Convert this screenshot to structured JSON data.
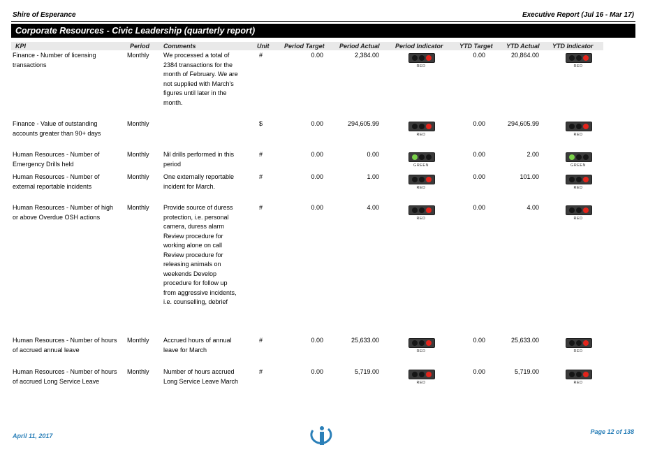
{
  "header": {
    "org": "Shire of Esperance",
    "report": "Executive Report (Jul 16 - Mar 17)",
    "banner": "Corporate Resources - Civic Leadership (quarterly report)"
  },
  "columns": {
    "kpi": "KPI",
    "period": "Period",
    "comments": "Comments",
    "unit": "Unit",
    "period_target": "Period Target",
    "period_actual": "Period Actual",
    "period_indicator": "Period Indicator",
    "ytd_target": "YTD Target",
    "ytd_actual": "YTD Actual",
    "ytd_indicator": "YTD Indicator"
  },
  "rows": [
    {
      "kpi": "Finance - Number of licensing transactions",
      "period": "Monthly",
      "comments": "We processed a total of 2384 transactions for the month of February. We are not supplied with March's figures until later in the month.",
      "unit": "#",
      "period_target": "0.00",
      "period_actual": "2,384.00",
      "period_indicator": "RED",
      "ytd_target": "0.00",
      "ytd_actual": "20,864.00",
      "ytd_indicator": "RED"
    },
    {
      "kpi": "Finance - Value of outstanding accounts greater than 90+ days",
      "period": "Monthly",
      "comments": "",
      "unit": "$",
      "period_target": "0.00",
      "period_actual": "294,605.99",
      "period_indicator": "RED",
      "ytd_target": "0.00",
      "ytd_actual": "294,605.99",
      "ytd_indicator": "RED"
    },
    {
      "kpi": "Human Resources - Number of Emergency Drills held",
      "period": "Monthly",
      "comments": "Nil drills performed in this period",
      "unit": "#",
      "period_target": "0.00",
      "period_actual": "0.00",
      "period_indicator": "GREEN",
      "ytd_target": "0.00",
      "ytd_actual": "2.00",
      "ytd_indicator": "GREEN"
    },
    {
      "kpi": "Human Resources - Number of external reportable incidents",
      "period": "Monthly",
      "comments": "One externally reportable incident for March.",
      "unit": "#",
      "period_target": "0.00",
      "period_actual": "1.00",
      "period_indicator": "RED",
      "ytd_target": "0.00",
      "ytd_actual": "101.00",
      "ytd_indicator": "RED"
    },
    {
      "kpi": "Human Resources - Number of high or above Overdue OSH actions",
      "period": "Monthly",
      "comments": "Provide source of duress protection, i.e. personal camera, duress alarm Review procedure for working alone on call Review procedure for releasing animals on weekends Develop procedure for follow up from aggressive incidents, i.e. counselling, debrief",
      "unit": "#",
      "period_target": "0.00",
      "period_actual": "4.00",
      "period_indicator": "RED",
      "ytd_target": "0.00",
      "ytd_actual": "4.00",
      "ytd_indicator": "RED"
    },
    {
      "kpi": "Human Resources - Number of hours of accrued annual leave",
      "period": "Monthly",
      "comments": "Accrued hours of annual leave for March",
      "unit": "#",
      "period_target": "0.00",
      "period_actual": "25,633.00",
      "period_indicator": "RED",
      "ytd_target": "0.00",
      "ytd_actual": "25,633.00",
      "ytd_indicator": "RED"
    },
    {
      "kpi": "Human Resources - Number of hours of accrued Long Service Leave",
      "period": "Monthly",
      "comments": "Number of hours accrued Long Service Leave March",
      "unit": "#",
      "period_target": "0.00",
      "period_actual": "5,719.00",
      "period_indicator": "RED",
      "ytd_target": "0.00",
      "ytd_actual": "5,719.00",
      "ytd_indicator": "RED"
    }
  ],
  "footer": {
    "date": "April 11, 2017",
    "page": "Page 12 of 138"
  },
  "colors": {
    "banner": "#000000",
    "header_band": "#e9e9e9",
    "indicator_red": "#e3241b",
    "indicator_green": "#7ad14a",
    "footer_text": "#2a7fb8"
  },
  "icons": {
    "indicator": "traffic-light-icon",
    "logo": "info-i-logo"
  }
}
